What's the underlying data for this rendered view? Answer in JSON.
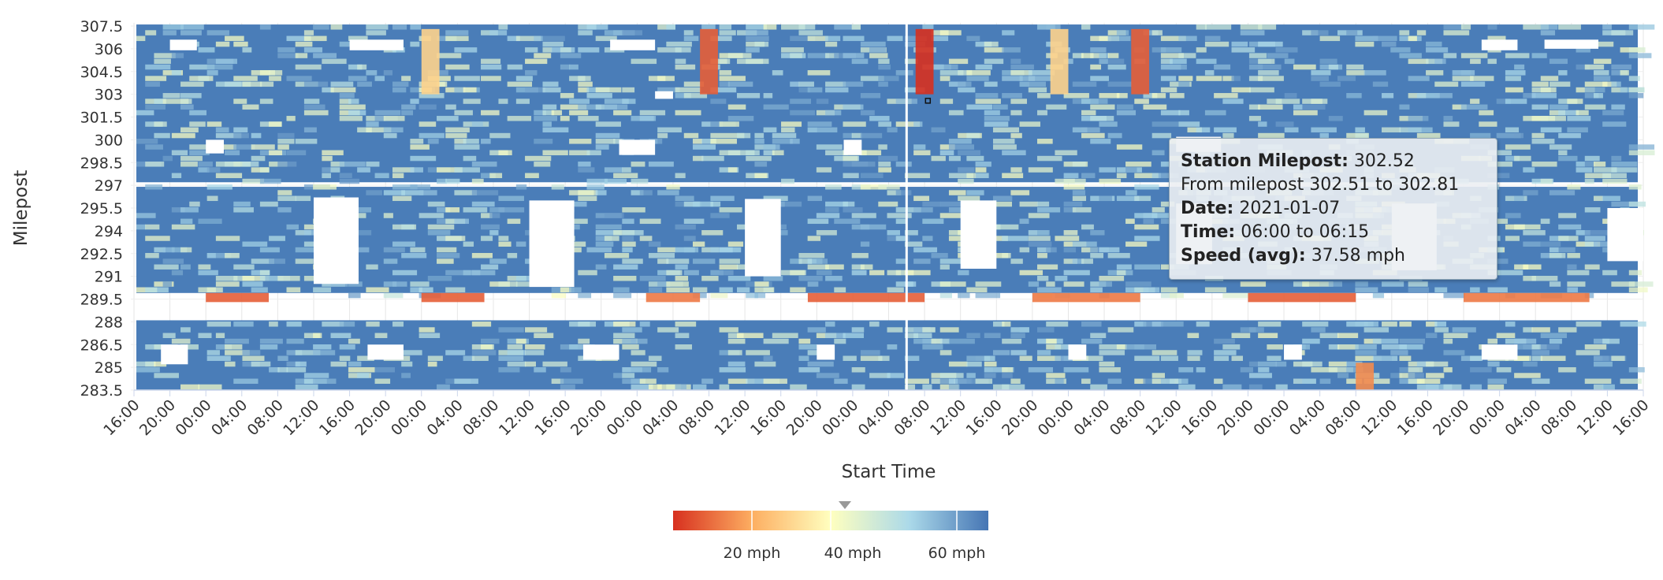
{
  "chart_data": {
    "type": "heatmap",
    "title": "",
    "xlabel": "Start Time",
    "ylabel": "Milepost",
    "y_ticks": [
      "307.5",
      "306",
      "304.5",
      "303",
      "301.5",
      "300",
      "298.5",
      "297",
      "295.5",
      "294",
      "292.5",
      "291",
      "289.5",
      "288",
      "286.5",
      "285",
      "283.5"
    ],
    "ylim": [
      283.5,
      307.5
    ],
    "x_ticks": [
      "16:00",
      "20:00",
      "00:00",
      "04:00",
      "08:00",
      "12:00",
      "16:00",
      "20:00",
      "00:00",
      "04:00",
      "08:00",
      "12:00",
      "16:00",
      "20:00",
      "00:00",
      "04:00",
      "08:00",
      "12:00",
      "16:00",
      "20:00",
      "00:00",
      "04:00",
      "08:00",
      "12:00",
      "16:00",
      "20:00",
      "00:00",
      "04:00",
      "08:00",
      "12:00",
      "16:00",
      "20:00",
      "00:00",
      "04:00",
      "08:00",
      "12:00",
      "16:00",
      "20:00",
      "00:00",
      "04:00",
      "08:00",
      "12:00",
      "16:00"
    ],
    "x_unit_hours": 4,
    "grid": true,
    "colorscale": {
      "stops": [
        "#d7301f",
        "#fdae61",
        "#ffffbf",
        "#abd9e9",
        "#4575b4"
      ],
      "labels": [
        "20 mph",
        "40 mph",
        "60 mph"
      ],
      "marker_value": "37.58 mph"
    },
    "selected_cell": {
      "hours_from_start": 86,
      "milepost": 302.52
    },
    "speed_features": [
      {
        "band": "north",
        "start_hour": 63,
        "end_hour": 65,
        "speed_mph": 15
      },
      {
        "band": "north",
        "start_hour": 87,
        "end_hour": 89,
        "speed_mph": 10
      },
      {
        "band": "north",
        "start_hour": 111,
        "end_hour": 113,
        "speed_mph": 15
      },
      {
        "band": "north",
        "start_hour": 102,
        "end_hour": 104,
        "speed_mph": 30
      },
      {
        "band": "north",
        "start_hour": 32,
        "end_hour": 34,
        "speed_mph": 30
      },
      {
        "band": "row-289.5",
        "start_hour": 8,
        "end_hour": 15,
        "speed_mph": 15
      },
      {
        "band": "row-289.5",
        "start_hour": 32,
        "end_hour": 39,
        "speed_mph": 15
      },
      {
        "band": "row-289.5",
        "start_hour": 57,
        "end_hour": 63,
        "speed_mph": 18
      },
      {
        "band": "row-289.5",
        "start_hour": 75,
        "end_hour": 88,
        "speed_mph": 15
      },
      {
        "band": "row-289.5",
        "start_hour": 100,
        "end_hour": 112,
        "speed_mph": 18
      },
      {
        "band": "row-289.5",
        "start_hour": 124,
        "end_hour": 136,
        "speed_mph": 15
      },
      {
        "band": "row-289.5",
        "start_hour": 148,
        "end_hour": 162,
        "speed_mph": 18
      },
      {
        "band": "south",
        "start_hour": 136,
        "end_hour": 138,
        "speed_mph": 20
      }
    ]
  },
  "tooltip": {
    "station_label": "Station Milepost:",
    "station_value": "302.52",
    "range_text": "From milepost 302.51 to 302.81",
    "date_label": "Date:",
    "date_value": "2021-01-07",
    "time_label": "Time:",
    "time_value": "06:00 to 06:15",
    "speed_label": "Speed (avg):",
    "speed_value": "37.58 mph"
  }
}
